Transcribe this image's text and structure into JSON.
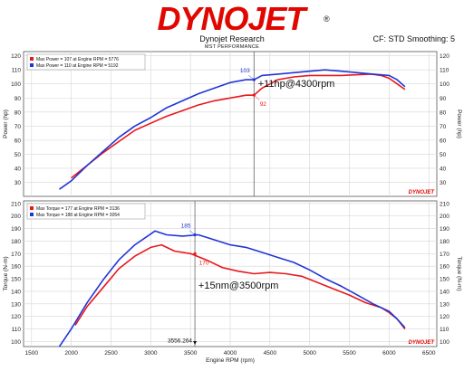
{
  "header": {
    "logo_text": "DYNOJET",
    "logo_mark": "®",
    "title": "Dynojet Research",
    "subtitle": "MST PERFORMANCE",
    "cf_info": "CF: STD Smoothing: 5"
  },
  "colors": {
    "red": "#e8171c",
    "blue": "#1f36d6",
    "grid": "#d6d6d6",
    "brand_red": "#e10600"
  },
  "chart_data": [
    {
      "type": "line",
      "ylabel": "Power (hp)",
      "xlim": [
        1400,
        6600
      ],
      "ylim": [
        20,
        123
      ],
      "yticks": [
        30,
        40,
        50,
        60,
        70,
        80,
        90,
        100,
        110,
        120
      ],
      "legend": [
        "Max Power = 107 at Engine RPM = 5776",
        "Max Power = 110 at Engine RPM = 5192"
      ],
      "series": [
        {
          "color": "red",
          "x": [
            2000,
            2200,
            2400,
            2600,
            2800,
            3000,
            3200,
            3400,
            3600,
            3800,
            4000,
            4200,
            4300,
            4400,
            4600,
            4800,
            5000,
            5200,
            5400,
            5600,
            5776,
            5900,
            6000,
            6100,
            6200
          ],
          "y": [
            33,
            42,
            51,
            59,
            67,
            72,
            77,
            81,
            85,
            88,
            90,
            92,
            92,
            97,
            103,
            105,
            106,
            106,
            106,
            106.5,
            107,
            106,
            104,
            100,
            96
          ]
        },
        {
          "color": "blue",
          "x": [
            1850,
            2000,
            2200,
            2400,
            2600,
            2800,
            3000,
            3200,
            3400,
            3600,
            3800,
            4000,
            4200,
            4300,
            4400,
            4600,
            4800,
            5000,
            5192,
            5400,
            5600,
            5800,
            6000,
            6100,
            6200
          ],
          "y": [
            25,
            31,
            42,
            52,
            62,
            70,
            76,
            83,
            88,
            93,
            97,
            101,
            103,
            103,
            106,
            107,
            108,
            109,
            110,
            109,
            108,
            107,
            106,
            103,
            98
          ]
        }
      ],
      "annotations": [
        {
          "text": "103",
          "x": 4300,
          "y": 103,
          "color": "blue"
        },
        {
          "text": "92",
          "x": 4300,
          "y": 92,
          "color": "red"
        },
        {
          "text": "+11hp@4300rpm",
          "x": 4350,
          "y": 98,
          "color": "black"
        }
      ],
      "cursor_rpm": 4300
    },
    {
      "type": "line",
      "xlabel": "Engine RPM (rpm)",
      "ylabel": "Torque (N-m)",
      "xlim": [
        1400,
        6600
      ],
      "ylim": [
        96,
        212
      ],
      "xticks": [
        1500,
        2000,
        2500,
        3000,
        3500,
        4000,
        4500,
        5000,
        5500,
        6000,
        6500
      ],
      "yticks": [
        100,
        110,
        120,
        130,
        140,
        150,
        160,
        170,
        180,
        190,
        200,
        210
      ],
      "legend": [
        "Max Torque = 177 at Engine RPM = 3136",
        "Max Torque = 188 at Engine RPM = 3054"
      ],
      "series": [
        {
          "color": "red",
          "x": [
            2050,
            2200,
            2400,
            2600,
            2800,
            3000,
            3136,
            3300,
            3500,
            3700,
            3900,
            4100,
            4300,
            4500,
            4700,
            4900,
            5100,
            5300,
            5500,
            5700,
            5900,
            6000,
            6100,
            6200
          ],
          "y": [
            113,
            128,
            143,
            158,
            168,
            175,
            177,
            172,
            170,
            165,
            159,
            156,
            154,
            155,
            154,
            152,
            147,
            142,
            137,
            131,
            127,
            123,
            118,
            110
          ]
        },
        {
          "color": "blue",
          "x": [
            1850,
            2000,
            2200,
            2400,
            2600,
            2800,
            3054,
            3200,
            3400,
            3600,
            3800,
            4000,
            4200,
            4400,
            4600,
            4800,
            5000,
            5200,
            5400,
            5600,
            5800,
            6000,
            6100,
            6200
          ],
          "y": [
            96,
            110,
            131,
            149,
            165,
            177,
            188,
            185,
            184,
            185,
            181,
            177,
            175,
            171,
            167,
            163,
            157,
            150,
            144,
            137,
            130,
            124,
            118,
            111
          ]
        }
      ],
      "annotations": [
        {
          "text": "185",
          "x": 3556,
          "y": 185,
          "color": "blue"
        },
        {
          "text": "170",
          "x": 3556,
          "y": 170,
          "color": "red"
        },
        {
          "text": "+15nm@3500rpm",
          "x": 3600,
          "y": 142,
          "color": "black"
        },
        {
          "text": "3556.264",
          "x": 3556,
          "y": 102,
          "color": "black"
        }
      ],
      "cursor_rpm": 3556
    }
  ]
}
